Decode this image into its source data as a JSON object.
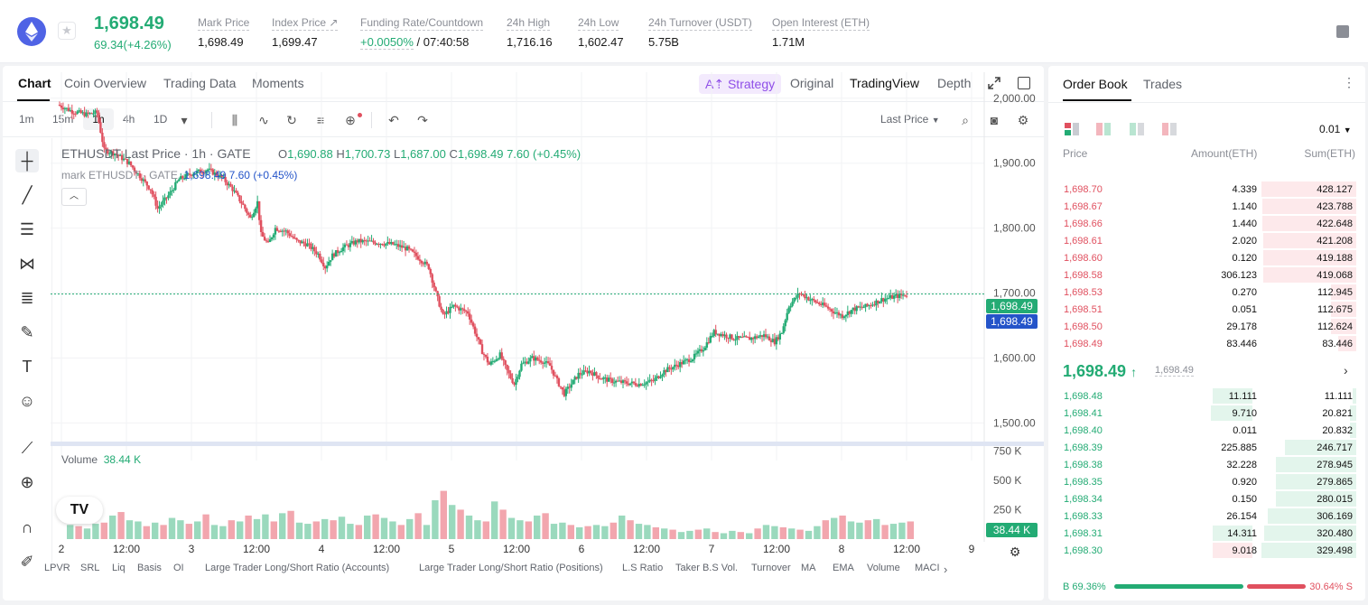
{
  "header": {
    "coin_logo": "ethereum-icon",
    "last_price": "1,698.49",
    "change": "69.34(+4.26%)",
    "stats": [
      {
        "label": "Mark Price",
        "value": "1,698.49"
      },
      {
        "label": "Index Price ↗",
        "value": "1,699.47"
      },
      {
        "label": "Funding Rate/Countdown",
        "value_green": "+0.0050%",
        "value": "/ 07:40:58"
      },
      {
        "label": "24h High",
        "value": "1,716.16"
      },
      {
        "label": "24h Low",
        "value": "1,602.47"
      },
      {
        "label": "24h Turnover (USDT)",
        "value": "5.75B"
      },
      {
        "label": "Open Interest (ETH)",
        "value": "1.71M"
      }
    ]
  },
  "chart_tabs": [
    "Chart",
    "Coin Overview",
    "Trading Data",
    "Moments"
  ],
  "view_tabs": {
    "strategy": "Strategy",
    "items": [
      "Original",
      "TradingView",
      "Depth"
    ]
  },
  "timeframes": [
    "1m",
    "15m",
    "1h",
    "4h",
    "1D"
  ],
  "price_type": "Last Price",
  "legend": {
    "symbol": "ETHUSDT Last Price · 1h · GATE",
    "open_label": "O",
    "open": "1,690.88",
    "high_label": "H",
    "high": "1,700.73",
    "low_label": "L",
    "low": "1,687.00",
    "close_label": "C",
    "close": "1,698.49",
    "chg": "7.60 (+0.45%)",
    "mark_prefix": "mark ETHUSDT · GATE",
    "mark_values": "1,698.49  7.60 (+0.45%)",
    "volume_label": "Volume",
    "volume_value": "38.44 K",
    "tv_logo": "TV"
  },
  "price_tags": {
    "last": "1,698.49",
    "mark": "1,698.49",
    "volume": "38.44 K"
  },
  "indicators": [
    "LPVR",
    "SRL",
    "Liq",
    "Basis",
    "OI",
    "Large Trader Long/Short Ratio (Accounts)",
    "Large Trader Long/Short Ratio (Positions)",
    "L.S Ratio",
    "Taker B.S Vol.",
    "Turnover",
    "MA",
    "EMA",
    "Volume",
    "MACI"
  ],
  "chart_data": {
    "type": "candlestick",
    "title": "ETHUSDT Last Price · 1h · GATE",
    "x_ticks": [
      "2",
      "12:00",
      "3",
      "12:00",
      "4",
      "12:00",
      "5",
      "12:00",
      "6",
      "12:00",
      "7",
      "12:00",
      "8",
      "12:00",
      "9"
    ],
    "y_ticks": [
      "2,000.00",
      "1,900.00",
      "1,800.00",
      "1,700.00",
      "1,600.00",
      "1,500.00"
    ],
    "ylim": [
      1470,
      2040
    ],
    "volume_ticks": [
      "750 K",
      "500 K",
      "250 K"
    ],
    "close_path": [
      [
        0,
        1990
      ],
      [
        8,
        1980
      ],
      [
        16,
        1975
      ],
      [
        22,
        1978
      ],
      [
        26,
        1920
      ],
      [
        32,
        1915
      ],
      [
        40,
        1900
      ],
      [
        46,
        1880
      ],
      [
        52,
        1860
      ],
      [
        56,
        1830
      ],
      [
        62,
        1850
      ],
      [
        68,
        1875
      ],
      [
        76,
        1885
      ],
      [
        84,
        1890
      ],
      [
        92,
        1878
      ],
      [
        98,
        1860
      ],
      [
        104,
        1835
      ],
      [
        108,
        1815
      ],
      [
        112,
        1840
      ],
      [
        114,
        1790
      ],
      [
        118,
        1775
      ],
      [
        122,
        1800
      ],
      [
        128,
        1795
      ],
      [
        134,
        1780
      ],
      [
        140,
        1775
      ],
      [
        146,
        1760
      ],
      [
        150,
        1740
      ],
      [
        154,
        1758
      ],
      [
        160,
        1770
      ],
      [
        168,
        1780
      ],
      [
        178,
        1778
      ],
      [
        188,
        1775
      ],
      [
        196,
        1768
      ],
      [
        202,
        1755
      ],
      [
        208,
        1740
      ],
      [
        212,
        1700
      ],
      [
        216,
        1665
      ],
      [
        222,
        1680
      ],
      [
        230,
        1670
      ],
      [
        234,
        1640
      ],
      [
        238,
        1610
      ],
      [
        242,
        1590
      ],
      [
        248,
        1605
      ],
      [
        252,
        1580
      ],
      [
        256,
        1560
      ],
      [
        260,
        1590
      ],
      [
        266,
        1600
      ],
      [
        272,
        1595
      ],
      [
        276,
        1588
      ],
      [
        280,
        1565
      ],
      [
        284,
        1545
      ],
      [
        288,
        1560
      ],
      [
        292,
        1575
      ],
      [
        298,
        1580
      ],
      [
        304,
        1570
      ],
      [
        310,
        1565
      ],
      [
        318,
        1562
      ],
      [
        326,
        1560
      ],
      [
        334,
        1565
      ],
      [
        340,
        1580
      ],
      [
        348,
        1590
      ],
      [
        356,
        1600
      ],
      [
        362,
        1615
      ],
      [
        368,
        1640
      ],
      [
        374,
        1635
      ],
      [
        380,
        1630
      ],
      [
        388,
        1630
      ],
      [
        396,
        1635
      ],
      [
        402,
        1625
      ],
      [
        406,
        1640
      ],
      [
        410,
        1680
      ],
      [
        416,
        1700
      ],
      [
        422,
        1690
      ],
      [
        430,
        1680
      ],
      [
        436,
        1670
      ],
      [
        440,
        1665
      ],
      [
        446,
        1675
      ],
      [
        454,
        1680
      ],
      [
        462,
        1690
      ],
      [
        470,
        1695
      ],
      [
        476,
        1698
      ]
    ],
    "close_path_x_unit": "hours",
    "volume_series": [
      120,
      110,
      90,
      130,
      140,
      200,
      230,
      160,
      150,
      110,
      140,
      120,
      180,
      160,
      130,
      150,
      210,
      120,
      110,
      160,
      150,
      200,
      170,
      210,
      150,
      220,
      240,
      140,
      130,
      150,
      170,
      160,
      190,
      130,
      120,
      200,
      210,
      180,
      150,
      120,
      170,
      220,
      120,
      330,
      410,
      290,
      250,
      200,
      160,
      150,
      320,
      250,
      180,
      160,
      150,
      200,
      220,
      130,
      140,
      120,
      100,
      110,
      120,
      110,
      140,
      200,
      160,
      130,
      120,
      100,
      90,
      80,
      60,
      70,
      80,
      90,
      60,
      50,
      70,
      60,
      50,
      90,
      120,
      110,
      100,
      90,
      80,
      70,
      110,
      160,
      180,
      200,
      150,
      140,
      160,
      170,
      120,
      130,
      140,
      150
    ]
  },
  "order_book": {
    "tabs": [
      "Order Book",
      "Trades"
    ],
    "precision": "0.01",
    "headers": [
      "Price",
      "Amount(ETH)",
      "Sum(ETH)"
    ],
    "asks": [
      {
        "price": "1,698.70",
        "amount": "4.339",
        "sum": "428.127",
        "depth": 1.0
      },
      {
        "price": "1,698.67",
        "amount": "1.140",
        "sum": "423.788",
        "depth": 0.99
      },
      {
        "price": "1,698.66",
        "amount": "1.440",
        "sum": "422.648",
        "depth": 0.987
      },
      {
        "price": "1,698.61",
        "amount": "2.020",
        "sum": "421.208",
        "depth": 0.984
      },
      {
        "price": "1,698.60",
        "amount": "0.120",
        "sum": "419.188",
        "depth": 0.979
      },
      {
        "price": "1,698.58",
        "amount": "306.123",
        "sum": "419.068",
        "depth": 0.979
      },
      {
        "price": "1,698.53",
        "amount": "0.270",
        "sum": "112.945",
        "depth": 0.264
      },
      {
        "price": "1,698.51",
        "amount": "0.051",
        "sum": "112.675",
        "depth": 0.263
      },
      {
        "price": "1,698.50",
        "amount": "29.178",
        "sum": "112.624",
        "depth": 0.263
      },
      {
        "price": "1,698.49",
        "amount": "83.446",
        "sum": "83.446",
        "depth": 0.195
      }
    ],
    "mid": {
      "price": "1,698.49",
      "arrow": "↑",
      "mark": "1,698.49"
    },
    "bids": [
      {
        "price": "1,698.48",
        "amount": "11.111",
        "sum": "11.111",
        "depth": 0.034,
        "amt_depth": 0.38
      },
      {
        "price": "1,698.41",
        "amount": "9.710",
        "sum": "20.821",
        "depth": 0.063,
        "amt_depth": 0.39
      },
      {
        "price": "1,698.40",
        "amount": "0.011",
        "sum": "20.832",
        "depth": 0.063,
        "amt_depth": 0.0
      },
      {
        "price": "1,698.39",
        "amount": "225.885",
        "sum": "246.717",
        "depth": 0.749,
        "amt_depth": 0.0
      },
      {
        "price": "1,698.38",
        "amount": "32.228",
        "sum": "278.945",
        "depth": 0.847,
        "amt_depth": 0.0
      },
      {
        "price": "1,698.35",
        "amount": "0.920",
        "sum": "279.865",
        "depth": 0.85,
        "amt_depth": 0.0
      },
      {
        "price": "1,698.34",
        "amount": "0.150",
        "sum": "280.015",
        "depth": 0.85,
        "amt_depth": 0.0
      },
      {
        "price": "1,698.33",
        "amount": "26.154",
        "sum": "306.169",
        "depth": 0.93,
        "amt_depth": 0.0
      },
      {
        "price": "1,698.31",
        "amount": "14.311",
        "sum": "320.480",
        "depth": 0.973,
        "amt_depth": 0.38
      },
      {
        "price": "1,698.30",
        "amount": "9.018",
        "sum": "329.498",
        "depth": 1.0,
        "amt_depth": 0.38,
        "amt_red": true
      }
    ],
    "buy_ratio": "69.36%",
    "sell_ratio": "30.64%",
    "buy_label": "B",
    "sell_label": "S"
  },
  "colors": {
    "up": "#23ab74",
    "down": "#e0505f",
    "accent": "#8f4fe8",
    "mark": "#2454c9"
  }
}
